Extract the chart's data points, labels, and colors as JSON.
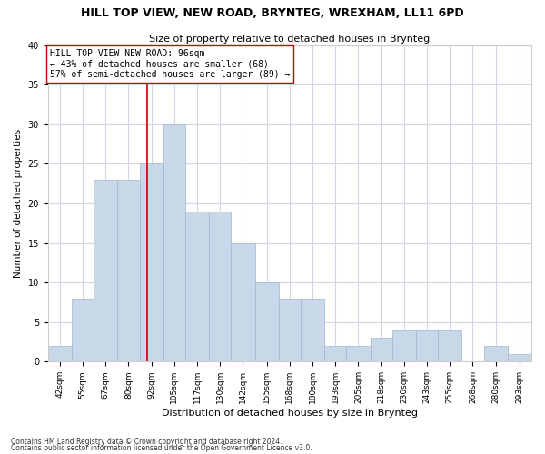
{
  "title": "HILL TOP VIEW, NEW ROAD, BRYNTEG, WREXHAM, LL11 6PD",
  "subtitle": "Size of property relative to detached houses in Brynteg",
  "xlabel": "Distribution of detached houses by size in Brynteg",
  "ylabel": "Number of detached properties",
  "bar_color": "#c8d8e8",
  "bar_edge_color": "#a0b8d0",
  "vline_x": 96,
  "vline_color": "#cc0000",
  "annotation_lines": [
    "HILL TOP VIEW NEW ROAD: 96sqm",
    "← 43% of detached houses are smaller (68)",
    "57% of semi-detached houses are larger (89) →"
  ],
  "annotation_box_color": "#ffffff",
  "annotation_box_edge": "#cc0000",
  "categories": [
    "42sqm",
    "55sqm",
    "67sqm",
    "80sqm",
    "92sqm",
    "105sqm",
    "117sqm",
    "130sqm",
    "142sqm",
    "155sqm",
    "168sqm",
    "180sqm",
    "193sqm",
    "205sqm",
    "218sqm",
    "230sqm",
    "243sqm",
    "255sqm",
    "268sqm",
    "280sqm",
    "293sqm"
  ],
  "bin_edges": [
    42,
    55,
    67,
    80,
    92,
    105,
    117,
    130,
    142,
    155,
    168,
    180,
    193,
    205,
    218,
    230,
    243,
    255,
    268,
    280,
    293,
    306
  ],
  "values": [
    2,
    8,
    23,
    23,
    25,
    30,
    19,
    19,
    15,
    10,
    8,
    8,
    2,
    2,
    3,
    4,
    4,
    4,
    0,
    2,
    1
  ],
  "ylim": [
    0,
    40
  ],
  "yticks": [
    0,
    5,
    10,
    15,
    20,
    25,
    30,
    35,
    40
  ],
  "bg_color": "#ffffff",
  "grid_color": "#d0d8e8",
  "footnote1": "Contains HM Land Registry data © Crown copyright and database right 2024.",
  "footnote2": "Contains public sector information licensed under the Open Government Licence v3.0."
}
